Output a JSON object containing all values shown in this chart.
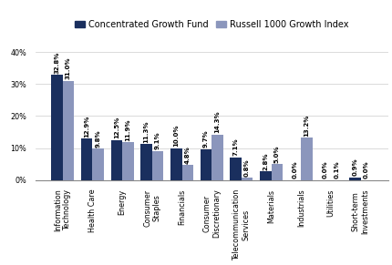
{
  "categories": [
    "Information\nTechnology",
    "Health Care",
    "Energy",
    "Consumer\nStaples",
    "Financials",
    "Consumer\nDiscretionary",
    "Telecommunication\nServices",
    "Materials",
    "Industrials",
    "Utilities",
    "Short-term\nInvestments"
  ],
  "fund_values": [
    32.8,
    12.9,
    12.5,
    11.3,
    10.0,
    9.7,
    7.1,
    2.8,
    0.0,
    0.0,
    0.9
  ],
  "benchmark_values": [
    31.0,
    9.8,
    11.9,
    9.1,
    4.8,
    14.3,
    0.8,
    5.0,
    13.2,
    0.1,
    0.0
  ],
  "fund_color": "#1a2f5e",
  "benchmark_color": "#8b96bc",
  "fund_label": "Concentrated Growth Fund",
  "benchmark_label": "Russell 1000 Growth Index",
  "ylim": [
    0,
    43
  ],
  "yticks": [
    0,
    10,
    20,
    30,
    40
  ],
  "ytick_labels": [
    "0%",
    "10%",
    "20%",
    "30%",
    "40%"
  ],
  "bar_width": 0.38,
  "label_fontsize": 5.0,
  "tick_fontsize": 5.8,
  "legend_fontsize": 7.0
}
